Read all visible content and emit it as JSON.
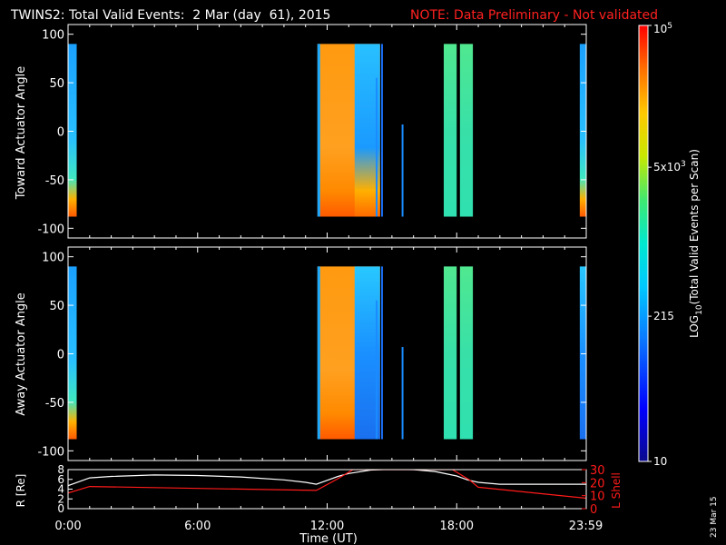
{
  "title": "TWINS2: Total Valid Events:  2 Mar (day  61), 2015",
  "note": "NOTE: Data Preliminary - Not validated",
  "stamp": "23 Mar 15",
  "colors": {
    "background": "#000000",
    "axes": "#ffffff",
    "note": "#ff2020",
    "lshell": "#ff1a1a",
    "radius": "#ffffff"
  },
  "chart_data": [
    {
      "type": "heatmap",
      "name": "toward",
      "ylabel": "Toward Actuator Angle",
      "ylim": [
        -110,
        110
      ],
      "yticks": [
        100,
        50,
        0,
        -50,
        -100
      ],
      "xlim": [
        0,
        24
      ],
      "angle_range": [
        -88,
        90
      ],
      "blocks": [
        {
          "start": 0.0,
          "end": 0.4,
          "style": "edge"
        },
        {
          "start": 11.55,
          "end": 14.45,
          "style": "hot"
        },
        {
          "start": 14.25,
          "end": 14.32,
          "style": "line",
          "angle_top": 55
        },
        {
          "start": 14.5,
          "end": 14.58,
          "style": "line"
        },
        {
          "start": 15.45,
          "end": 15.52,
          "style": "line",
          "angle_top": 7
        },
        {
          "start": 17.4,
          "end": 18.0,
          "style": "green"
        },
        {
          "start": 18.15,
          "end": 18.75,
          "style": "green"
        },
        {
          "start": 23.7,
          "end": 24.0,
          "style": "edge"
        }
      ]
    },
    {
      "type": "heatmap",
      "name": "away",
      "ylabel": "Away Actuator Angle",
      "ylim": [
        -110,
        110
      ],
      "yticks": [
        100,
        50,
        0,
        -50,
        -100
      ],
      "xlim": [
        0,
        24
      ],
      "angle_range": [
        -88,
        90
      ],
      "blocks": [
        {
          "start": 0.0,
          "end": 0.4,
          "style": "edge"
        },
        {
          "start": 11.55,
          "end": 14.45,
          "style": "hot"
        },
        {
          "start": 14.25,
          "end": 14.32,
          "style": "line",
          "angle_top": 55
        },
        {
          "start": 14.5,
          "end": 14.58,
          "style": "line"
        },
        {
          "start": 15.45,
          "end": 15.52,
          "style": "line",
          "angle_top": 7
        },
        {
          "start": 17.4,
          "end": 18.0,
          "style": "green"
        },
        {
          "start": 18.15,
          "end": 18.75,
          "style": "green"
        },
        {
          "start": 23.7,
          "end": 24.0,
          "style": "edge"
        }
      ]
    },
    {
      "type": "line",
      "name": "orbit",
      "xlabel": "Time (UT)",
      "xticks": [
        {
          "value": 0,
          "label": "0:00"
        },
        {
          "value": 6,
          "label": "6:00"
        },
        {
          "value": 12,
          "label": "12:00"
        },
        {
          "value": 18,
          "label": "18:00"
        },
        {
          "value": 23.98,
          "label": "23:59"
        }
      ],
      "ylabel_left": "R [Re]",
      "ylim_left": [
        0,
        8
      ],
      "yticks_left": [
        0,
        2,
        4,
        6,
        8
      ],
      "ylabel_right": "L Shell",
      "ylim_right": [
        0,
        30
      ],
      "yticks_right": [
        0,
        10,
        20,
        30
      ],
      "series": [
        {
          "name": "R [Re]",
          "axis": "left",
          "x": [
            0,
            1,
            2,
            4,
            6,
            8,
            10,
            11,
            11.5,
            12,
            12.5,
            13,
            14,
            15,
            16,
            17,
            18,
            18.5,
            19,
            20,
            21,
            22,
            23,
            24
          ],
          "y": [
            4.7,
            6.3,
            6.6,
            6.9,
            6.8,
            6.5,
            5.9,
            5.4,
            5.0,
            5.8,
            6.6,
            7.2,
            7.9,
            8.1,
            8.0,
            7.6,
            6.7,
            5.9,
            5.4,
            5.0,
            5.0,
            5.0,
            5.0,
            5.0
          ]
        },
        {
          "name": "L Shell",
          "axis": "right",
          "x": [
            0,
            1,
            11.5,
            12.5,
            13.2,
            17.8,
            18.6,
            19.0,
            24
          ],
          "y": [
            12,
            17,
            14,
            23,
            30,
            30,
            22,
            16.5,
            8
          ]
        }
      ]
    }
  ],
  "colorbar": {
    "label": "LOG10(Total Valid Events per Scan)",
    "label_main": "LOG",
    "label_sub": "10",
    "label_rest": "(Total Valid Events per Scan)",
    "ticks": [
      {
        "value": 100000,
        "label": "10",
        "sup": "5"
      },
      {
        "value": 5000,
        "label": "5x10",
        "sup": "3"
      },
      {
        "value": 215,
        "label": "215",
        "sup": ""
      },
      {
        "value": 10,
        "label": "10",
        "sup": ""
      }
    ],
    "range": [
      10,
      100000
    ]
  }
}
